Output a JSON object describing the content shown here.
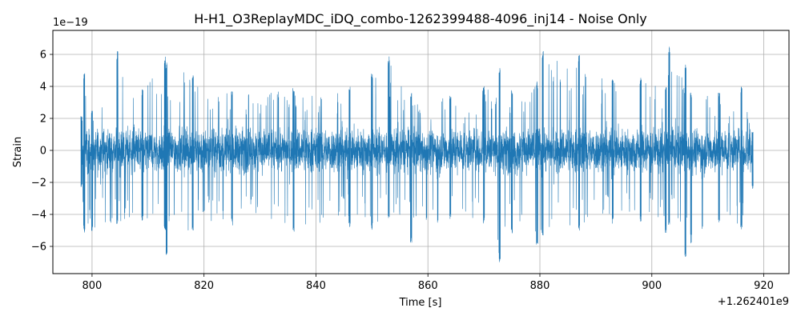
{
  "chart_data": {
    "type": "line",
    "title": "H-H1_O3ReplayMDC_iDQ_combo-1262399488-4096_inj14 - Noise Only",
    "xlabel": "Time [s]",
    "ylabel": "Strain",
    "x_offset_label": "+1.262401e9",
    "y_scale_label": "1e−19",
    "xlim": [
      793,
      924.5
    ],
    "ylim": [
      -7.7,
      7.5
    ],
    "x_ticks": [
      800,
      820,
      840,
      860,
      880,
      900,
      920
    ],
    "x_tick_labels": [
      "800",
      "820",
      "840",
      "860",
      "880",
      "900",
      "920"
    ],
    "y_ticks": [
      -6,
      -4,
      -2,
      0,
      2,
      4,
      6
    ],
    "y_tick_labels": [
      "−6",
      "−4",
      "−2",
      "0",
      "2",
      "4",
      "6"
    ],
    "grid": true,
    "series": [
      {
        "color": "#1f77b4",
        "x_range": [
          798.0,
          918.1
        ],
        "envelope": {
          "x": [
            798.1,
            798.6,
            800.0,
            804.5,
            809.0,
            813.0,
            813.3,
            818.0,
            825.0,
            836.0,
            846.0,
            850.0,
            853.0,
            857.0,
            864.0,
            870.0,
            872.8,
            875.0,
            879.5,
            880.5,
            887.0,
            893.0,
            898.0,
            902.5,
            903.1,
            906.0,
            907.0,
            912.0,
            916.0,
            918.0
          ],
          "upper": [
            2.2,
            5.0,
            2.5,
            6.3,
            3.8,
            6.0,
            5.6,
            4.9,
            3.8,
            3.9,
            4.1,
            4.8,
            5.9,
            3.6,
            3.4,
            4.0,
            5.2,
            3.8,
            4.3,
            6.3,
            6.0,
            4.7,
            4.6,
            4.1,
            6.6,
            5.4,
            3.6,
            3.6,
            4.0,
            1.2
          ],
          "lower": [
            -2.3,
            -5.4,
            -5.1,
            -4.7,
            -4.4,
            -5.1,
            -7.0,
            -5.0,
            -4.7,
            -5.1,
            -4.8,
            -5.0,
            -4.3,
            -5.8,
            -4.4,
            -4.6,
            -7.0,
            -5.3,
            -5.9,
            -5.4,
            -5.0,
            -4.6,
            -4.5,
            -5.2,
            -4.7,
            -6.7,
            -5.8,
            -4.5,
            -5.0,
            -2.4
          ],
          "typical": 2.1
        }
      }
    ]
  }
}
